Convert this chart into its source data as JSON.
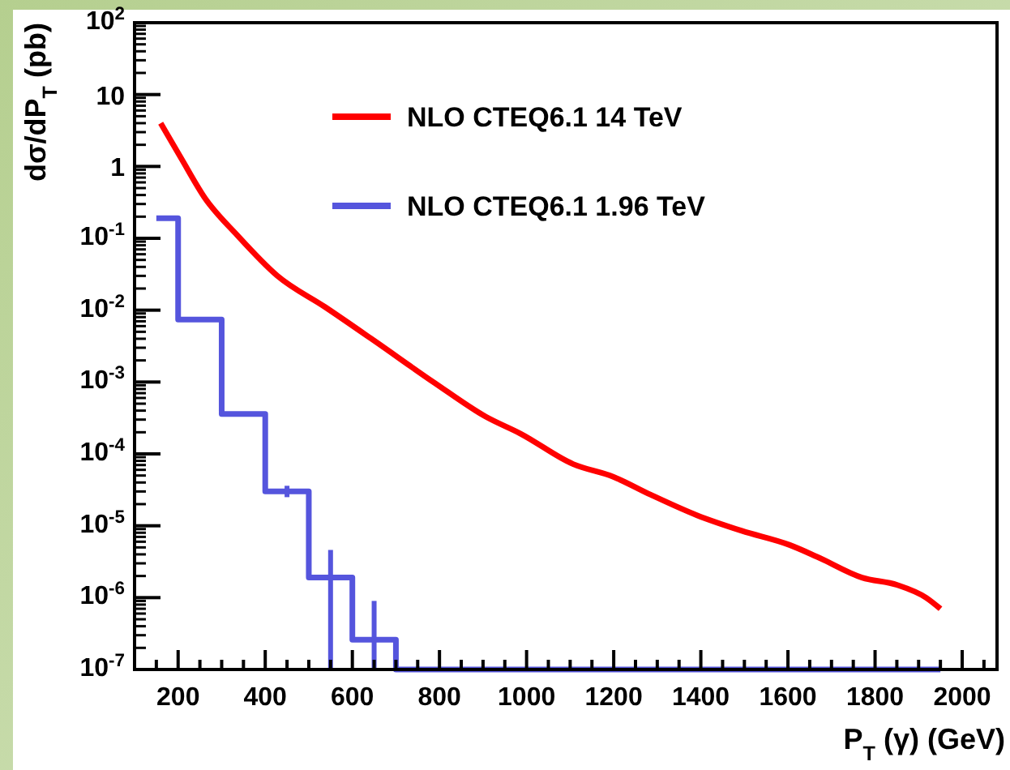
{
  "chart_data": {
    "type": "line",
    "xlabel": "P$_{T}$ (γ) (GeV)",
    "ylabel": "dσ/dP$_{T}$ (pb)",
    "log": "y",
    "legend": "top",
    "grid": false,
    "xlim": [
      100,
      2080
    ],
    "ylim": [
      1e-07,
      100
    ],
    "xticks": [
      {
        "value": 150,
        "label": null
      },
      200,
      {
        "value": 250,
        "label": null
      },
      {
        "value": 300,
        "label": null
      },
      {
        "value": 350,
        "label": null
      },
      400,
      {
        "value": 450,
        "label": null
      },
      {
        "value": 500,
        "label": null
      },
      {
        "value": 550,
        "label": null
      },
      600,
      {
        "value": 650,
        "label": null
      },
      {
        "value": 700,
        "label": null
      },
      {
        "value": 750,
        "label": null
      },
      800,
      {
        "value": 850,
        "label": null
      },
      {
        "value": 900,
        "label": null
      },
      {
        "value": 950,
        "label": null
      },
      1000,
      {
        "value": 1050,
        "label": null
      },
      {
        "value": 1100,
        "label": null
      },
      {
        "value": 1150,
        "label": null
      },
      1200,
      {
        "value": 1250,
        "label": null
      },
      {
        "value": 1300,
        "label": null
      },
      {
        "value": 1350,
        "label": null
      },
      1400,
      {
        "value": 1450,
        "label": null
      },
      {
        "value": 1500,
        "label": null
      },
      {
        "value": 1550,
        "label": null
      },
      1600,
      {
        "value": 1650,
        "label": null
      },
      {
        "value": 1700,
        "label": null
      },
      {
        "value": 1750,
        "label": null
      },
      1800,
      {
        "value": 1850,
        "label": null
      },
      {
        "value": 1900,
        "label": null
      },
      {
        "value": 1950,
        "label": null
      },
      2000,
      {
        "value": 2050,
        "label": null
      }
    ],
    "yticks": [
      {
        "value": 1e-07,
        "label": "10$^{-7}$"
      },
      {
        "value": 1e-06,
        "label": "10$^{-6}$"
      },
      {
        "value": 1e-05,
        "label": "10$^{-5}$"
      },
      {
        "value": 0.0001,
        "label": "10$^{-4}$"
      },
      {
        "value": 0.001,
        "label": "10$^{-3}$"
      },
      {
        "value": 0.01,
        "label": "10$^{-2}$"
      },
      {
        "value": 0.1,
        "label": "10$^{-1}$"
      },
      1,
      10,
      {
        "value": 100,
        "label": "10$^{2}$"
      }
    ],
    "series": [
      {
        "type": "line",
        "name": "NLO CTEQ6.1  14 TeV",
        "color": "#ff0000",
        "x": [
          160,
          207,
          262,
          336,
          428,
          538,
          649,
          788,
          906,
          987,
          1107,
          1199,
          1285,
          1391,
          1494,
          1604,
          1667,
          1770,
          1851,
          1917,
          1950
        ],
        "values": [
          4,
          1.3,
          0.36,
          0.11,
          0.03,
          0.011,
          0.0038,
          0.00098,
          0.00033,
          0.00019,
          7.2e-05,
          4.8e-05,
          2.7e-05,
          1.4e-05,
          8.5e-06,
          5.4e-06,
          3.7e-06,
          1.9e-06,
          1.5e-06,
          1e-06,
          7e-07
        ]
      },
      {
        "type": "step",
        "name": "NLO CTEQ6.1  1.96 TeV",
        "color": "#5555dd",
        "x": [
          150,
          250,
          350,
          450,
          550,
          650,
          750,
          850,
          950,
          1050,
          1150,
          1250,
          1350,
          1450,
          1550,
          1650,
          1750,
          1850,
          1950
        ],
        "values": [
          0.19,
          0.0074,
          0.00036,
          3e-05,
          1.9e-06,
          2.6e-07,
          1e-07,
          1e-07,
          1e-07,
          1e-07,
          1e-07,
          1e-07,
          1e-07,
          1e-07,
          1e-07,
          1e-07,
          1e-07,
          1e-07,
          1e-07
        ],
        "errors": [
          null,
          null,
          null,
          [
            2.5e-05,
            3.6e-05
          ],
          [
            1e-07,
            4.6e-06
          ],
          [
            1e-07,
            9e-07
          ],
          null,
          null,
          null,
          null,
          null,
          null,
          null,
          null,
          null,
          null,
          null,
          null,
          null
        ]
      }
    ]
  }
}
